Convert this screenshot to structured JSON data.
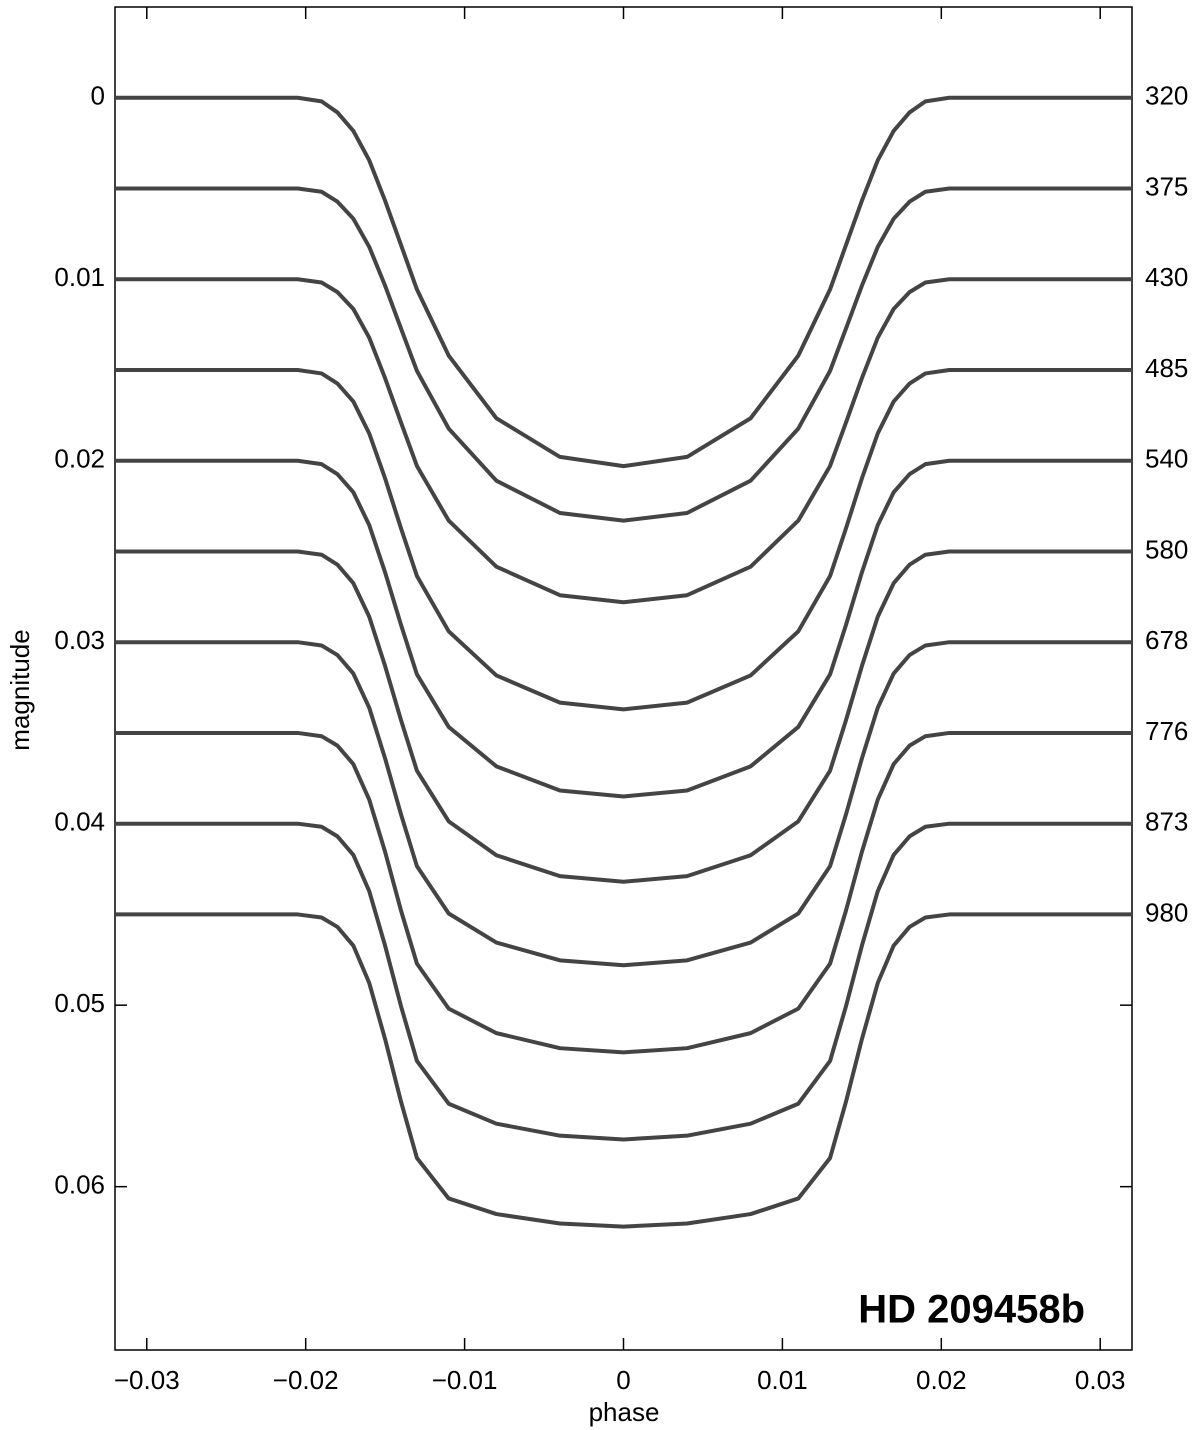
{
  "chart_data": {
    "type": "line",
    "xlabel": "phase",
    "ylabel": "magnitude",
    "annotation": "HD 209458b",
    "xlim": [
      -0.032,
      0.032
    ],
    "ylim": [
      -0.005,
      0.069
    ],
    "y_reversed": true,
    "xticks": [
      {
        "value": -0.03,
        "label": "−0.03"
      },
      {
        "value": -0.02,
        "label": "−0.02"
      },
      {
        "value": -0.01,
        "label": "−0.01"
      },
      0,
      0.01,
      0.02,
      0.03
    ],
    "yticks": [
      0,
      0.01,
      0.02,
      0.03,
      0.04,
      0.05,
      0.06
    ],
    "color": "#444444",
    "x": [
      -0.032,
      -0.0205,
      -0.019,
      -0.018,
      -0.017,
      -0.016,
      -0.015,
      -0.014,
      -0.013,
      -0.011,
      -0.008,
      -0.004,
      0,
      0.004,
      0.008,
      0.011,
      0.013,
      0.014,
      0.015,
      0.016,
      0.017,
      0.018,
      0.019,
      0.0205,
      0.032
    ],
    "series": [
      {
        "name": "320",
        "values": [
          0,
          0,
          0.0002,
          0.00081,
          0.00183,
          0.00345,
          0.00568,
          0.00812,
          0.01056,
          0.01421,
          0.01766,
          0.01979,
          0.0203,
          0.01979,
          0.01766,
          0.01421,
          0.01056,
          0.00812,
          0.00568,
          0.00345,
          0.00183,
          0.00081,
          0.0002,
          0,
          0
        ]
      },
      {
        "name": "375",
        "values": [
          0.005,
          0.005,
          0.00518,
          0.00573,
          0.00667,
          0.00822,
          0.01036,
          0.01272,
          0.01505,
          0.01823,
          0.0211,
          0.02288,
          0.0233,
          0.02288,
          0.0211,
          0.01823,
          0.01505,
          0.01272,
          0.01036,
          0.00822,
          0.00667,
          0.00573,
          0.00518,
          0.005,
          0.005
        ]
      },
      {
        "name": "430",
        "values": [
          0.01,
          0.01,
          0.01018,
          0.01071,
          0.01164,
          0.01322,
          0.01546,
          0.0179,
          0.02029,
          0.0233,
          0.02584,
          0.02741,
          0.0278,
          0.02741,
          0.02584,
          0.0233,
          0.02029,
          0.0179,
          0.01546,
          0.01322,
          0.01164,
          0.01071,
          0.01018,
          0.01,
          0.01
        ]
      },
      {
        "name": "485",
        "values": [
          0.015,
          0.015,
          0.01519,
          0.01575,
          0.01674,
          0.0185,
          0.02098,
          0.02373,
          0.02635,
          0.0294,
          0.03183,
          0.03333,
          0.0337,
          0.03333,
          0.03183,
          0.0294,
          0.02635,
          0.02373,
          0.02098,
          0.0185,
          0.01674,
          0.01575,
          0.01519,
          0.015,
          0.015
        ]
      },
      {
        "name": "540",
        "values": [
          0.02,
          0.02,
          0.02019,
          0.02074,
          0.02174,
          0.02355,
          0.02616,
          0.02905,
          0.03177,
          0.03467,
          0.03684,
          0.03817,
          0.0385,
          0.03817,
          0.03684,
          0.03467,
          0.03177,
          0.02905,
          0.02616,
          0.02355,
          0.02174,
          0.02074,
          0.02019,
          0.02,
          0.02
        ]
      },
      {
        "name": "580",
        "values": [
          0.025,
          0.025,
          0.02518,
          0.02573,
          0.02675,
          0.0286,
          0.03132,
          0.0343,
          0.03708,
          0.03987,
          0.04174,
          0.04289,
          0.0432,
          0.04289,
          0.04174,
          0.03987,
          0.03708,
          0.0343,
          0.03132,
          0.0286,
          0.02675,
          0.02573,
          0.02518,
          0.025,
          0.025
        ]
      },
      {
        "name": "678",
        "values": [
          0.03,
          0.03,
          0.03018,
          0.03071,
          0.03173,
          0.03361,
          0.03641,
          0.03949,
          0.04234,
          0.04495,
          0.04655,
          0.04753,
          0.0478,
          0.04753,
          0.04655,
          0.04495,
          0.04234,
          0.03949,
          0.03641,
          0.03361,
          0.03173,
          0.03071,
          0.03018,
          0.03,
          0.03
        ]
      },
      {
        "name": "776",
        "values": [
          0.035,
          0.035,
          0.03518,
          0.0357,
          0.03672,
          0.03868,
          0.04156,
          0.04479,
          0.04771,
          0.05019,
          0.05154,
          0.05237,
          0.0526,
          0.05237,
          0.05154,
          0.05019,
          0.04771,
          0.04479,
          0.04156,
          0.03868,
          0.03672,
          0.0357,
          0.03518,
          0.035,
          0.035
        ]
      },
      {
        "name": "873",
        "values": [
          0.04,
          0.04,
          0.04017,
          0.0407,
          0.04172,
          0.04372,
          0.04673,
          0.05006,
          0.05307,
          0.05543,
          0.05653,
          0.05719,
          0.0574,
          0.05719,
          0.05653,
          0.05543,
          0.05307,
          0.05006,
          0.04673,
          0.04372,
          0.04172,
          0.0407,
          0.04017,
          0.04,
          0.04
        ]
      },
      {
        "name": "980",
        "values": [
          0.045,
          0.045,
          0.04517,
          0.04569,
          0.04672,
          0.04878,
          0.05188,
          0.05532,
          0.05842,
          0.06065,
          0.06151,
          0.06203,
          0.0622,
          0.06203,
          0.06151,
          0.06065,
          0.05842,
          0.05532,
          0.05188,
          0.04878,
          0.04672,
          0.04569,
          0.04517,
          0.045,
          0.045
        ]
      }
    ]
  }
}
